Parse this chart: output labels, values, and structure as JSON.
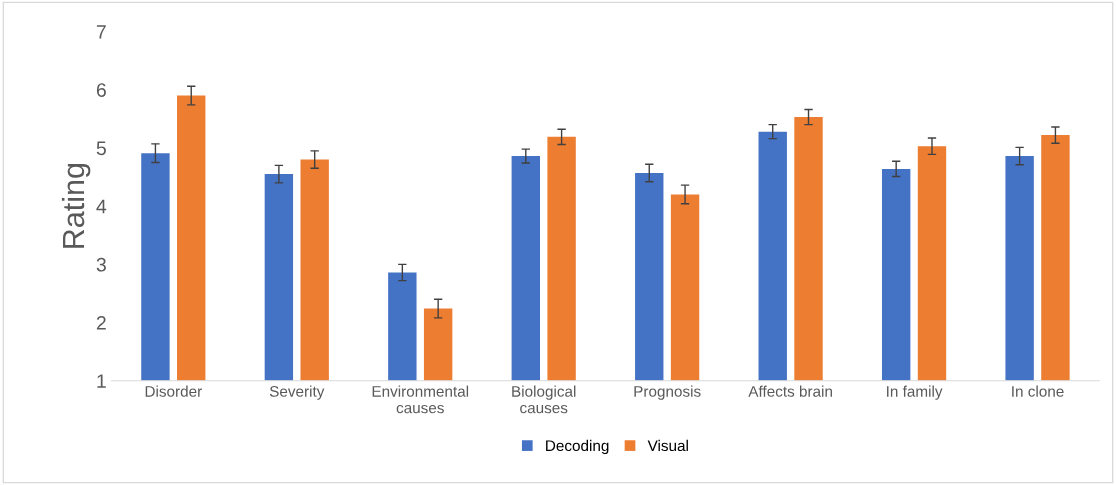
{
  "chart_data": {
    "type": "bar",
    "ylabel": "Rating",
    "categories": [
      "Disorder",
      "Severity",
      "Environmental\ncauses",
      "Biological\ncauses",
      "Prognosis",
      "Affects brain",
      "In family",
      "In clone"
    ],
    "series": [
      {
        "name": "Decoding",
        "color": "#4472c4",
        "values": [
          4.91,
          4.55,
          2.86,
          4.86,
          4.57,
          5.28,
          4.64,
          4.86
        ],
        "errors": [
          0.16,
          0.15,
          0.14,
          0.12,
          0.15,
          0.12,
          0.13,
          0.15
        ]
      },
      {
        "name": "Visual",
        "color": "#ed7d31",
        "values": [
          5.9,
          4.8,
          2.24,
          5.19,
          4.2,
          5.53,
          5.03,
          5.22
        ],
        "errors": [
          0.16,
          0.15,
          0.16,
          0.13,
          0.16,
          0.13,
          0.14,
          0.14
        ]
      }
    ],
    "ylim": [
      1,
      7
    ],
    "yticks": [
      1,
      2,
      3,
      4,
      5,
      6,
      7
    ],
    "grid": false,
    "legend": "bottom"
  }
}
